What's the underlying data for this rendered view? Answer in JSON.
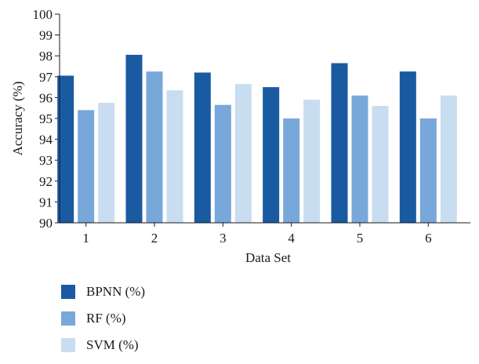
{
  "chart_data": {
    "type": "bar",
    "title": "",
    "xlabel": "Data Set",
    "ylabel": "Accuracy (%)",
    "categories": [
      "1",
      "2",
      "3",
      "4",
      "5",
      "6"
    ],
    "ylim": [
      90,
      100
    ],
    "yticks": [
      "90",
      "91",
      "92",
      "93",
      "94",
      "95",
      "96",
      "97",
      "98",
      "99",
      "100"
    ],
    "grid": false,
    "legend_position": "bottom-left",
    "series": [
      {
        "name": "BPNN (%)",
        "color": "#1a5aa0",
        "values": [
          97.05,
          98.05,
          97.2,
          96.5,
          97.65,
          97.25
        ]
      },
      {
        "name": "RF (%)",
        "color": "#78a8da",
        "values": [
          95.4,
          97.25,
          95.65,
          95.0,
          96.1,
          95.0
        ]
      },
      {
        "name": "SVM (%)",
        "color": "#c9ddf1",
        "values": [
          95.75,
          96.35,
          96.65,
          95.9,
          95.6,
          96.1
        ]
      }
    ]
  }
}
